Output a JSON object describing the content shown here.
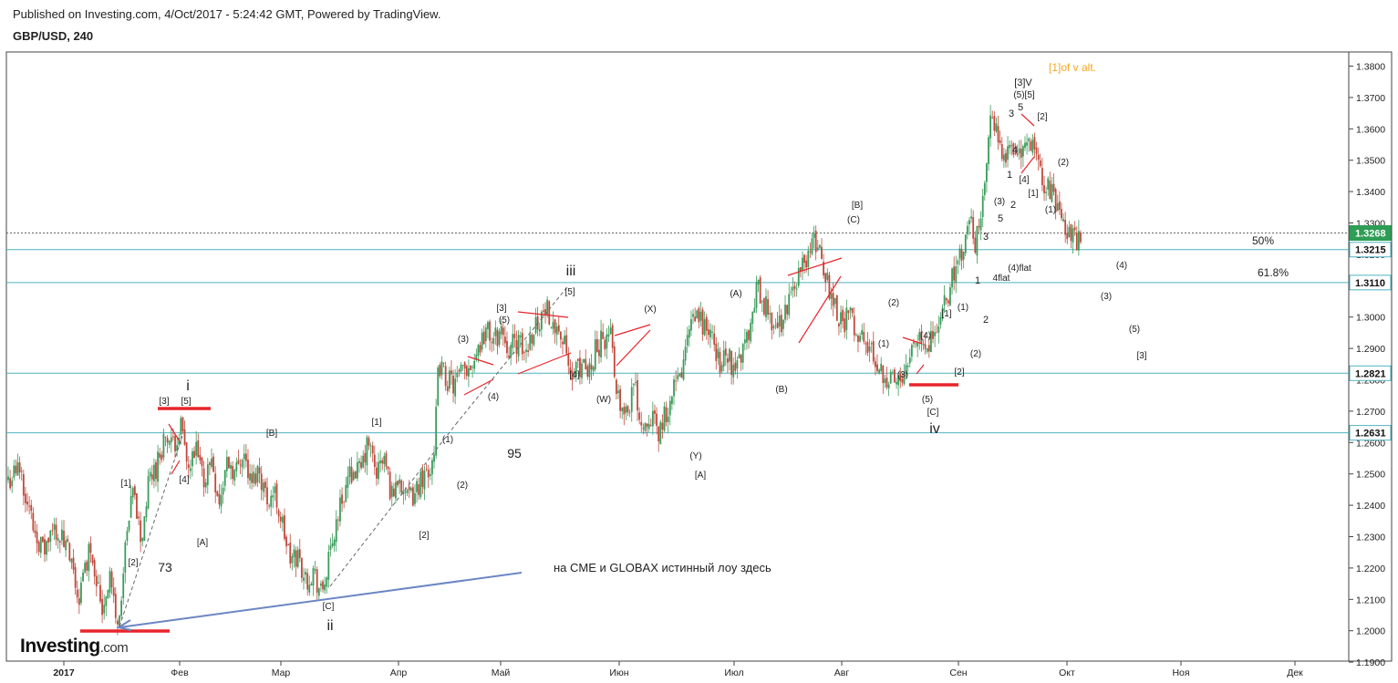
{
  "header": {
    "published": "Published on Investing.com, 4/Oct/2017 - 5:24:42 GMT, Powered by TradingView.",
    "symbol": "GBP/USD, 240"
  },
  "logo": {
    "main": "Investing",
    "suffix": ".com"
  },
  "colors": {
    "candle_up": "#3a9b5a",
    "candle_down": "#c0483b",
    "trendline_red": "#e8252b",
    "level_teal": "#4fb3c0",
    "label_teal": "#1e8c9a",
    "arrow_blue": "#6c86c4",
    "orange": "#f5a623",
    "price_current": "#2e9d55"
  },
  "chart_data": {
    "type": "candlestick",
    "title": "GBP/USD, 240",
    "y_axis": {
      "side": "right",
      "ticks": [
        "1.3800",
        "1.3700",
        "1.3600",
        "1.3500",
        "1.3400",
        "1.3300",
        "1.3200",
        "1.3100",
        "1.3000",
        "1.2900",
        "1.2800",
        "1.2700",
        "1.2600",
        "1.2500",
        "1.2400",
        "1.2300",
        "1.2200",
        "1.2100",
        "1.2000",
        "1.1900"
      ],
      "range": [
        1.187,
        1.382
      ]
    },
    "x_axis": {
      "ticks": [
        "2017",
        "Фев",
        "Мар",
        "Апр",
        "Май",
        "Июн",
        "Июл",
        "Авг",
        "Сен",
        "Окт",
        "Ноя",
        "Дек"
      ]
    },
    "price_path": [
      [
        0,
        1.248
      ],
      [
        3,
        1.252
      ],
      [
        6,
        1.235
      ],
      [
        9,
        1.225
      ],
      [
        12,
        1.233
      ],
      [
        15,
        1.226
      ],
      [
        18,
        1.21
      ],
      [
        21,
        1.228
      ],
      [
        24,
        1.207
      ],
      [
        26,
        1.218
      ],
      [
        28,
        1.2
      ],
      [
        30,
        1.226
      ],
      [
        32,
        1.245
      ],
      [
        34,
        1.228
      ],
      [
        36,
        1.248
      ],
      [
        38,
        1.253
      ],
      [
        40,
        1.262
      ],
      [
        42,
        1.258
      ],
      [
        44,
        1.266
      ],
      [
        46,
        1.25
      ],
      [
        48,
        1.257
      ],
      [
        50,
        1.248
      ],
      [
        52,
        1.255
      ],
      [
        54,
        1.24
      ],
      [
        56,
        1.255
      ],
      [
        58,
        1.25
      ],
      [
        60,
        1.258
      ],
      [
        62,
        1.246
      ],
      [
        64,
        1.252
      ],
      [
        66,
        1.242
      ],
      [
        68,
        1.244
      ],
      [
        70,
        1.234
      ],
      [
        72,
        1.222
      ],
      [
        74,
        1.224
      ],
      [
        76,
        1.216
      ],
      [
        78,
        1.219
      ],
      [
        80,
        1.211
      ],
      [
        82,
        1.222
      ],
      [
        84,
        1.236
      ],
      [
        86,
        1.245
      ],
      [
        88,
        1.252
      ],
      [
        90,
        1.25
      ],
      [
        92,
        1.26
      ],
      [
        94,
        1.25
      ],
      [
        96,
        1.255
      ],
      [
        98,
        1.243
      ],
      [
        100,
        1.25
      ],
      [
        102,
        1.241
      ],
      [
        104,
        1.244
      ],
      [
        106,
        1.25
      ],
      [
        108,
        1.252
      ],
      [
        109,
        1.262
      ],
      [
        110,
        1.285
      ],
      [
        112,
        1.28
      ],
      [
        114,
        1.278
      ],
      [
        116,
        1.282
      ],
      [
        118,
        1.285
      ],
      [
        120,
        1.29
      ],
      [
        122,
        1.296
      ],
      [
        124,
        1.292
      ],
      [
        126,
        1.296
      ],
      [
        128,
        1.29
      ],
      [
        130,
        1.292
      ],
      [
        132,
        1.288
      ],
      [
        134,
        1.296
      ],
      [
        136,
        1.3
      ],
      [
        138,
        1.302
      ],
      [
        140,
        1.298
      ],
      [
        142,
        1.291
      ],
      [
        144,
        1.279
      ],
      [
        146,
        1.285
      ],
      [
        148,
        1.281
      ],
      [
        150,
        1.29
      ],
      [
        152,
        1.293
      ],
      [
        154,
        1.294
      ],
      [
        155,
        1.282
      ],
      [
        156,
        1.275
      ],
      [
        158,
        1.27
      ],
      [
        160,
        1.278
      ],
      [
        162,
        1.265
      ],
      [
        164,
        1.27
      ],
      [
        166,
        1.262
      ],
      [
        168,
        1.27
      ],
      [
        170,
        1.276
      ],
      [
        172,
        1.282
      ],
      [
        174,
        1.295
      ],
      [
        176,
        1.3
      ],
      [
        178,
        1.297
      ],
      [
        180,
        1.292
      ],
      [
        182,
        1.285
      ],
      [
        184,
        1.287
      ],
      [
        186,
        1.283
      ],
      [
        188,
        1.292
      ],
      [
        190,
        1.298
      ],
      [
        191,
        1.31
      ],
      [
        193,
        1.305
      ],
      [
        195,
        1.299
      ],
      [
        197,
        1.297
      ],
      [
        199,
        1.303
      ],
      [
        201,
        1.311
      ],
      [
        203,
        1.316
      ],
      [
        205,
        1.322
      ],
      [
        207,
        1.324
      ],
      [
        208,
        1.318
      ],
      [
        209,
        1.312
      ],
      [
        211,
        1.305
      ],
      [
        213,
        1.298
      ],
      [
        215,
        1.3
      ],
      [
        217,
        1.295
      ],
      [
        219,
        1.291
      ],
      [
        221,
        1.288
      ],
      [
        223,
        1.283
      ],
      [
        225,
        1.28
      ],
      [
        227,
        1.279
      ],
      [
        229,
        1.284
      ],
      [
        231,
        1.292
      ],
      [
        233,
        1.296
      ],
      [
        235,
        1.292
      ],
      [
        237,
        1.294
      ],
      [
        239,
        1.303
      ],
      [
        241,
        1.312
      ],
      [
        243,
        1.318
      ],
      [
        245,
        1.325
      ],
      [
        246,
        1.332
      ],
      [
        247,
        1.321
      ],
      [
        249,
        1.34
      ],
      [
        251,
        1.362
      ],
      [
        253,
        1.357
      ],
      [
        255,
        1.35
      ],
      [
        257,
        1.354
      ],
      [
        259,
        1.352
      ],
      [
        261,
        1.356
      ],
      [
        263,
        1.348
      ],
      [
        265,
        1.342
      ],
      [
        267,
        1.338
      ],
      [
        269,
        1.335
      ],
      [
        270,
        1.328
      ],
      [
        272,
        1.325
      ],
      [
        274,
        1.324
      ]
    ],
    "horizontal_levels": [
      "1.3268",
      "1.3215",
      "1.3110",
      "1.2821",
      "1.2631"
    ],
    "current_price": "1.3268",
    "fib_labels": [
      "50%",
      "61.8%"
    ],
    "wave_labels": [
      "i",
      "ii",
      "iii",
      "iv",
      "[3]V",
      "(5)[5]",
      "[1]of v alt.",
      "[3]",
      "[5]",
      "[1]",
      "[2]",
      "[4]",
      "[A]",
      "[B]",
      "[C]",
      "(1)",
      "(2)",
      "(3)",
      "(4)",
      "(5)",
      "(A)",
      "(B)",
      "(C)",
      "(W)",
      "(X)",
      "(Y)",
      "1",
      "2",
      "3",
      "4",
      "5",
      "(4)flat",
      "4flat"
    ],
    "annotations": [
      "73",
      "95",
      "на CME и GLOBAX  истинный лоу здесь"
    ]
  }
}
